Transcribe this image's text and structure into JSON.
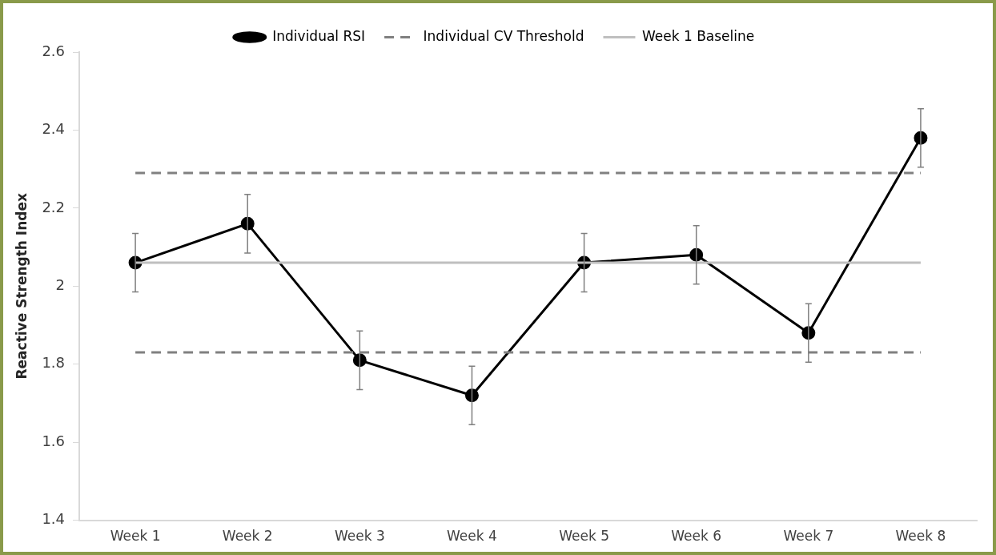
{
  "chart_data": {
    "type": "line",
    "ylabel": "Reactive Strength Index",
    "categories": [
      "Week 1",
      "Week 2",
      "Week 3",
      "Week 4",
      "Week 5",
      "Week 6",
      "Week 7",
      "Week 8"
    ],
    "series": [
      {
        "name": "Individual RSI",
        "color": "#000000",
        "values": [
          2.06,
          2.16,
          1.81,
          1.72,
          2.06,
          2.08,
          1.88,
          2.38
        ],
        "errors": [
          0.075,
          0.075,
          0.075,
          0.075,
          0.075,
          0.075,
          0.075,
          0.075
        ],
        "marker": "circle",
        "line_style": "solid"
      },
      {
        "name": "Individual CV Threshold",
        "color": "#808080",
        "values": [
          2.29,
          2.29,
          2.29,
          2.29,
          2.29,
          2.29,
          2.29,
          2.29
        ],
        "marker": "none",
        "line_style": "dashed"
      },
      {
        "color": "#808080",
        "values": [
          1.83,
          1.83,
          1.83,
          1.83,
          1.83,
          1.83,
          1.83,
          1.83
        ],
        "marker": "none",
        "line_style": "dashed"
      },
      {
        "name": "Week 1 Baseline",
        "color": "#bfbfbf",
        "values": [
          2.06,
          2.06,
          2.06,
          2.06,
          2.06,
          2.06,
          2.06,
          2.06
        ],
        "marker": "none",
        "line_style": "solid"
      }
    ],
    "ylim": [
      1.4,
      2.6
    ],
    "yticks": [
      1.4,
      1.6,
      1.8,
      {
        "value": 2,
        "label": "2"
      },
      2.2,
      2.4,
      2.6
    ],
    "grid": false,
    "legend": "top"
  }
}
